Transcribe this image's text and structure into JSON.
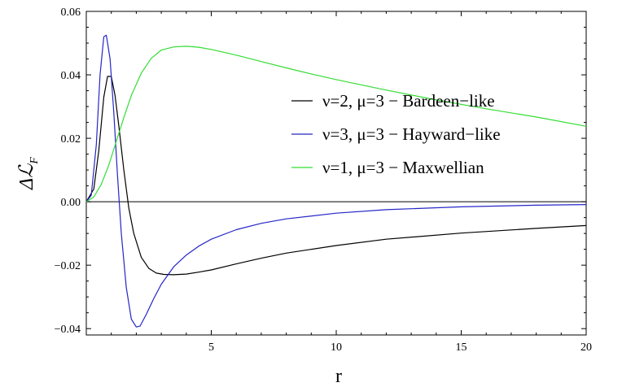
{
  "chart_data": {
    "type": "line",
    "title": "",
    "xlabel": "r",
    "ylabel": "ΔℒF",
    "ylabel_main": "Δℒ",
    "ylabel_sub": "F",
    "xlim": [
      0,
      20
    ],
    "ylim": [
      -0.042,
      0.06
    ],
    "x_ticks": [
      5,
      10,
      15,
      20
    ],
    "x_tick_labels": [
      "5",
      "10",
      "15",
      "20"
    ],
    "y_ticks": [
      -0.04,
      -0.02,
      0.0,
      0.02,
      0.04,
      0.06
    ],
    "y_tick_labels": [
      "−0.04",
      "−0.02",
      "0.00",
      "0.02",
      "0.04",
      "0.06"
    ],
    "grid": false,
    "legend_position": "right-center",
    "series": [
      {
        "name": "ν=2, μ=3 − Bardeen−like",
        "color": "#000000",
        "x": [
          0,
          0.3,
          0.5,
          0.7,
          0.85,
          1.0,
          1.15,
          1.3,
          1.5,
          1.7,
          1.9,
          2.2,
          2.5,
          2.8,
          3.1,
          3.5,
          4.0,
          4.5,
          5.0,
          6.0,
          7.0,
          8.0,
          10.0,
          12.0,
          15.0,
          18.0,
          20.0
        ],
        "y": [
          0,
          0.004,
          0.016,
          0.033,
          0.0395,
          0.0395,
          0.0335,
          0.024,
          0.01,
          -0.002,
          -0.01,
          -0.0175,
          -0.021,
          -0.0225,
          -0.0229,
          -0.023,
          -0.0228,
          -0.0222,
          -0.0215,
          -0.0196,
          -0.0178,
          -0.0162,
          -0.0138,
          -0.0118,
          -0.0099,
          -0.0084,
          -0.0075
        ]
      },
      {
        "name": "ν=3, μ=3 − Hayward−like",
        "color": "#2525c8",
        "x": [
          0,
          0.2,
          0.4,
          0.55,
          0.7,
          0.8,
          0.95,
          1.1,
          1.25,
          1.4,
          1.6,
          1.8,
          2.0,
          2.15,
          2.4,
          2.7,
          3.0,
          3.5,
          4.0,
          4.5,
          5.0,
          6.0,
          7.0,
          8.0,
          10.0,
          12.0,
          15.0,
          18.0,
          20.0
        ],
        "y": [
          0,
          0.002,
          0.018,
          0.04,
          0.052,
          0.0525,
          0.045,
          0.028,
          0.008,
          -0.01,
          -0.027,
          -0.037,
          -0.0395,
          -0.0392,
          -0.0355,
          -0.0305,
          -0.026,
          -0.0205,
          -0.0168,
          -0.014,
          -0.0118,
          -0.0088,
          -0.0068,
          -0.0054,
          -0.0036,
          -0.0025,
          -0.0016,
          -0.0011,
          -0.0009
        ]
      },
      {
        "name": "ν=1, μ=3 − Maxwellian",
        "color": "#33dd33",
        "x": [
          0,
          0.3,
          0.6,
          0.9,
          1.2,
          1.5,
          1.8,
          2.2,
          2.6,
          3.0,
          3.5,
          4.0,
          4.5,
          5.0,
          6.0,
          7.0,
          8.0,
          9.0,
          10.0,
          12.0,
          14.0,
          16.0,
          18.0,
          20.0
        ],
        "y": [
          0,
          0.0015,
          0.0055,
          0.0115,
          0.019,
          0.0265,
          0.0335,
          0.0405,
          0.0452,
          0.0478,
          0.0488,
          0.049,
          0.0487,
          0.048,
          0.0462,
          0.0442,
          0.0422,
          0.0403,
          0.0385,
          0.0352,
          0.0321,
          0.0293,
          0.0267,
          0.0238
        ]
      }
    ]
  }
}
